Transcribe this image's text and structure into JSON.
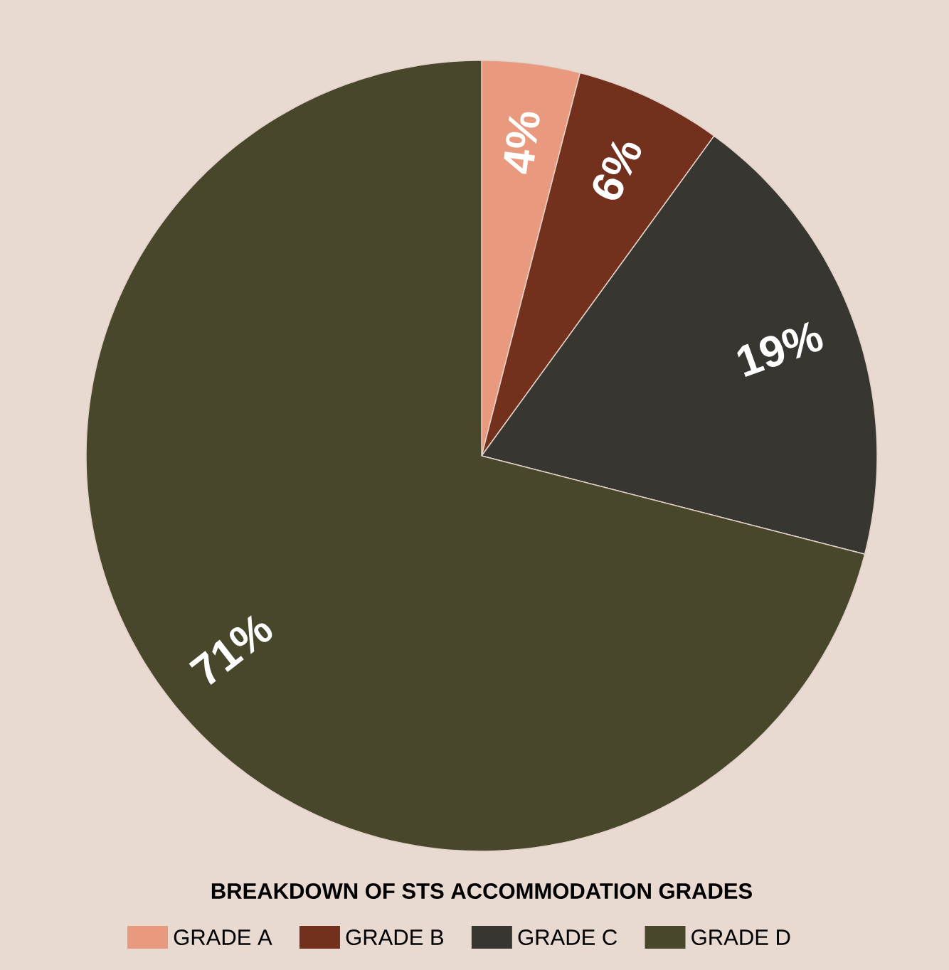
{
  "chart_data": {
    "type": "pie",
    "title": "BREAKDOWN OF STS ACCOMMODATION GRADES",
    "categories": [
      "GRADE A",
      "GRADE B",
      "GRADE C",
      "GRADE D"
    ],
    "values": [
      4,
      6,
      19,
      71
    ],
    "colors": [
      "#e8997e",
      "#73301d",
      "#383631",
      "#49472b"
    ],
    "value_labels": [
      "4%",
      "6%",
      "19%",
      "71%"
    ],
    "legend": "bottom"
  }
}
